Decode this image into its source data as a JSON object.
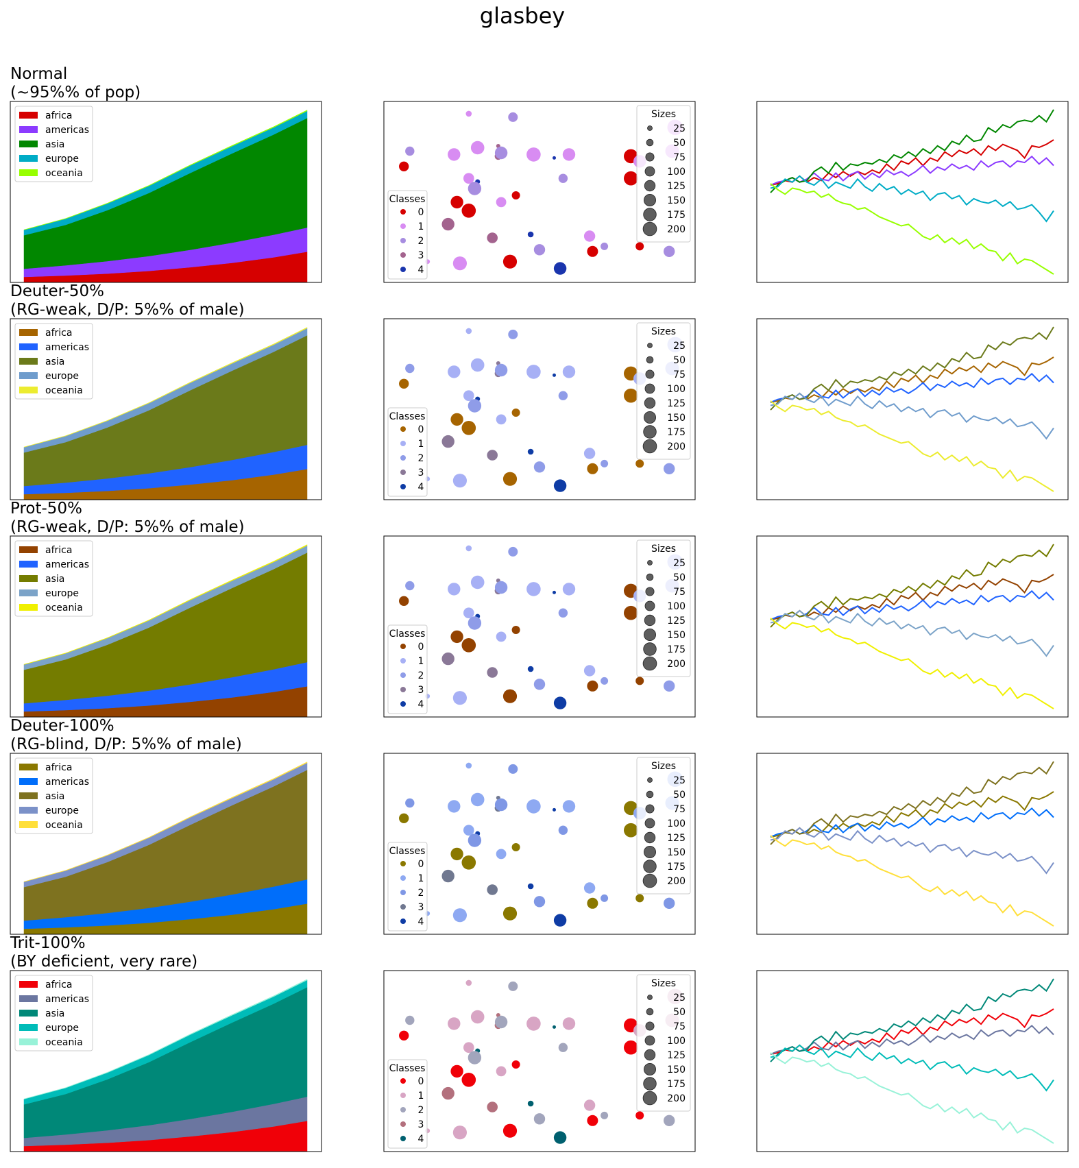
{
  "figure_title": "glasbey",
  "rows": [
    {
      "title_line1": "Normal",
      "title_line2": "(~95%% of pop)",
      "colors": [
        "#d60000",
        "#8c3bff",
        "#018700",
        "#00acc6",
        "#97ff00"
      ],
      "class_colors": [
        "#d60000",
        "#d88cf2",
        "#a78de0",
        "#a3638e",
        "#1a35ad"
      ]
    },
    {
      "title_line1": "Deuter-50%",
      "title_line2": "(RG-weak, D/P: 5%% of male)",
      "colors": [
        "#a66400",
        "#2063ff",
        "#6b7a1a",
        "#6f9ccc",
        "#ecec30"
      ],
      "class_colors": [
        "#a66400",
        "#a7b0f5",
        "#8f9ce8",
        "#8a7897",
        "#0e3ca5"
      ]
    },
    {
      "title_line1": "Prot-50%",
      "title_line2": "(RG-weak, D/P: 5%% of male)",
      "colors": [
        "#934200",
        "#2063ff",
        "#747c00",
        "#7ba3c8",
        "#f0f000"
      ],
      "class_colors": [
        "#934200",
        "#a7b0f5",
        "#8f9ce8",
        "#8a7897",
        "#0e3ca5"
      ]
    },
    {
      "title_line1": "Deuter-100%",
      "title_line2": "(RG-blind, D/P: 5%% of male)",
      "colors": [
        "#8a7800",
        "#006efa",
        "#7e721f",
        "#7b91c8",
        "#ffdf3a"
      ],
      "class_colors": [
        "#8a7800",
        "#8ea9f2",
        "#7f97e5",
        "#707890",
        "#0e3ca5"
      ]
    },
    {
      "title_line1": "Trit-100%",
      "title_line2": "(BY deficient, very rare)",
      "colors": [
        "#f00008",
        "#6b76a0",
        "#008878",
        "#00bcb8",
        "#98f2d8"
      ],
      "class_colors": [
        "#f00008",
        "#d8a5c4",
        "#a2a5bc",
        "#b3707d",
        "#00606f"
      ]
    }
  ],
  "chart_data": [
    {
      "type": "area",
      "stacked": true,
      "x": [
        1950,
        1960,
        1970,
        1980,
        1990,
        2000,
        2010,
        2018
      ],
      "series": [
        {
          "name": "africa",
          "values": [
            228,
            284,
            365,
            477,
            631,
            814,
            1044,
            1275
          ]
        },
        {
          "name": "americas",
          "values": [
            340,
            425,
            519,
            619,
            727,
            840,
            943,
            1006
          ]
        },
        {
          "name": "asia",
          "values": [
            1394,
            1686,
            2120,
            2625,
            3202,
            3714,
            4169,
            4560
          ]
        },
        {
          "name": "europe",
          "values": [
            220,
            253,
            276,
            295,
            310,
            303,
            294,
            293
          ]
        },
        {
          "name": "oceania",
          "values": [
            12,
            15,
            19,
            22,
            26,
            31,
            36,
            39
          ]
        }
      ],
      "legend": "top-left",
      "axes_visible": false
    },
    {
      "type": "scatter",
      "xlim": [
        0,
        1
      ],
      "ylim": [
        0,
        1
      ],
      "legend_classes_title": "Classes",
      "legend_classes": [
        "0",
        "1",
        "2",
        "3",
        "4"
      ],
      "legend_sizes_title": "Sizes",
      "legend_sizes": [
        25,
        50,
        75,
        100,
        125,
        150,
        175,
        200
      ],
      "points": [
        {
          "x": 0.26,
          "y": 0.96,
          "s": 60,
          "c": 1
        },
        {
          "x": 0.41,
          "y": 0.94,
          "s": 160,
          "c": 2
        },
        {
          "x": 0.06,
          "y": 0.74,
          "s": 150,
          "c": 2
        },
        {
          "x": 0.04,
          "y": 0.65,
          "s": 170,
          "c": 0
        },
        {
          "x": 0.21,
          "y": 0.72,
          "s": 280,
          "c": 1
        },
        {
          "x": 0.29,
          "y": 0.76,
          "s": 320,
          "c": 1
        },
        {
          "x": 0.36,
          "y": 0.77,
          "s": 30,
          "c": 3
        },
        {
          "x": 0.36,
          "y": 0.71,
          "s": 90,
          "c": 3
        },
        {
          "x": 0.37,
          "y": 0.73,
          "s": 280,
          "c": 2
        },
        {
          "x": 0.48,
          "y": 0.72,
          "s": 350,
          "c": 1
        },
        {
          "x": 0.55,
          "y": 0.7,
          "s": 20,
          "c": 4
        },
        {
          "x": 0.6,
          "y": 0.72,
          "s": 280,
          "c": 1
        },
        {
          "x": 0.81,
          "y": 0.71,
          "s": 350,
          "c": 0
        },
        {
          "x": 0.84,
          "y": 0.68,
          "s": 280,
          "c": 1
        },
        {
          "x": 0.96,
          "y": 0.88,
          "s": 420,
          "c": 1
        },
        {
          "x": 0.95,
          "y": 0.74,
          "s": 330,
          "c": 1
        },
        {
          "x": 0.26,
          "y": 0.58,
          "s": 200,
          "c": 1
        },
        {
          "x": 0.29,
          "y": 0.56,
          "s": 40,
          "c": 4
        },
        {
          "x": 0.28,
          "y": 0.52,
          "s": 310,
          "c": 2
        },
        {
          "x": 0.81,
          "y": 0.58,
          "s": 350,
          "c": 0
        },
        {
          "x": 0.58,
          "y": 0.58,
          "s": 150,
          "c": 2
        },
        {
          "x": 0.42,
          "y": 0.48,
          "s": 120,
          "c": 0
        },
        {
          "x": 0.37,
          "y": 0.44,
          "s": 180,
          "c": 1
        },
        {
          "x": 0.22,
          "y": 0.44,
          "s": 280,
          "c": 0
        },
        {
          "x": 0.26,
          "y": 0.39,
          "s": 350,
          "c": 0
        },
        {
          "x": 0.19,
          "y": 0.31,
          "s": 280,
          "c": 3
        },
        {
          "x": 0.34,
          "y": 0.23,
          "s": 200,
          "c": 3
        },
        {
          "x": 0.47,
          "y": 0.25,
          "s": 60,
          "c": 4
        },
        {
          "x": 0.67,
          "y": 0.24,
          "s": 220,
          "c": 1
        },
        {
          "x": 0.72,
          "y": 0.18,
          "s": 100,
          "c": 2
        },
        {
          "x": 0.5,
          "y": 0.16,
          "s": 220,
          "c": 2
        },
        {
          "x": 0.68,
          "y": 0.15,
          "s": 210,
          "c": 0
        },
        {
          "x": 0.84,
          "y": 0.18,
          "s": 120,
          "c": 0
        },
        {
          "x": 0.94,
          "y": 0.15,
          "s": 220,
          "c": 2
        },
        {
          "x": 0.12,
          "y": 0.09,
          "s": 40,
          "c": 1
        },
        {
          "x": 0.23,
          "y": 0.08,
          "s": 340,
          "c": 1
        },
        {
          "x": 0.4,
          "y": 0.09,
          "s": 340,
          "c": 0
        },
        {
          "x": 0.57,
          "y": 0.05,
          "s": 280,
          "c": 4
        }
      ],
      "axes_visible": false
    },
    {
      "type": "line",
      "series_names": [
        "africa",
        "americas",
        "asia",
        "europe",
        "oceania"
      ],
      "x": [
        0,
        1,
        2,
        3,
        4,
        5,
        6,
        7,
        8,
        9,
        10,
        11,
        12,
        13,
        14,
        15,
        16,
        17,
        18,
        19,
        20,
        21,
        22,
        23,
        24,
        25,
        26,
        27,
        28,
        29,
        30,
        31,
        32,
        33,
        34,
        35,
        36,
        37,
        38,
        39
      ],
      "series": [
        {
          "name": "africa",
          "values": [
            0.0,
            0.1,
            0.3,
            0.2,
            0.6,
            0.2,
            0.5,
            0.3,
            0.8,
            0.5,
            0.9,
            0.6,
            0.9,
            0.7,
            1.0,
            0.8,
            1.4,
            1.0,
            1.6,
            1.4,
            1.8,
            1.3,
            1.8,
            1.6,
            2.2,
            1.9,
            2.3,
            2.1,
            2.4,
            2.0,
            2.6,
            2.3,
            2.7,
            2.5,
            2.3,
            1.8,
            2.6,
            2.5,
            2.7,
            3.0
          ]
        },
        {
          "name": "americas",
          "values": [
            0.0,
            0.2,
            0.3,
            0.5,
            0.2,
            0.4,
            0.8,
            0.4,
            0.3,
            0.8,
            0.3,
            0.7,
            0.9,
            0.4,
            0.8,
            0.5,
            1.0,
            0.7,
            0.9,
            0.6,
            0.9,
            1.3,
            0.8,
            1.2,
            1.0,
            1.4,
            1.1,
            1.3,
            1.0,
            1.6,
            1.2,
            1.5,
            1.6,
            1.2,
            1.6,
            1.5,
            1.9,
            1.4,
            1.8,
            1.3
          ]
        },
        {
          "name": "asia",
          "values": [
            -0.5,
            0.0,
            0.3,
            0.5,
            0.2,
            0.3,
            0.9,
            1.2,
            0.8,
            1.5,
            1.0,
            1.4,
            1.3,
            1.5,
            1.4,
            1.7,
            1.5,
            2.0,
            1.8,
            2.2,
            1.9,
            2.4,
            2.1,
            2.6,
            2.3,
            2.9,
            2.7,
            3.3,
            2.9,
            3.0,
            3.8,
            3.5,
            4.0,
            3.8,
            4.2,
            4.3,
            4.2,
            4.6,
            4.2,
            5.0
          ]
        },
        {
          "name": "europe",
          "values": [
            -0.2,
            -0.1,
            0.4,
            0.2,
            0.6,
            0.2,
            0.0,
            0.4,
            -0.2,
            0.2,
            0.0,
            -0.2,
            0.4,
            -0.1,
            -0.4,
            0.1,
            -0.3,
            -0.1,
            -0.6,
            -0.3,
            -0.6,
            -0.4,
            -1.0,
            -0.6,
            -0.5,
            -0.9,
            -0.7,
            -1.3,
            -0.9,
            -1.1,
            -1.2,
            -1.0,
            -1.4,
            -1.1,
            -1.6,
            -1.5,
            -1.3,
            -1.8,
            -2.4,
            -1.7
          ]
        },
        {
          "name": "oceania",
          "values": [
            0.1,
            -0.3,
            -0.6,
            -0.2,
            -0.3,
            -0.5,
            -0.4,
            -0.8,
            -0.6,
            -1.0,
            -1.2,
            -1.3,
            -1.6,
            -1.5,
            -1.8,
            -2.1,
            -2.3,
            -2.5,
            -2.7,
            -2.6,
            -3.0,
            -3.4,
            -3.6,
            -3.3,
            -3.8,
            -3.5,
            -3.9,
            -3.6,
            -4.2,
            -3.9,
            -4.3,
            -4.4,
            -5.0,
            -4.5,
            -5.2,
            -4.9,
            -5.0,
            -5.3,
            -5.6,
            -5.9
          ]
        }
      ],
      "axes_visible": false
    }
  ]
}
